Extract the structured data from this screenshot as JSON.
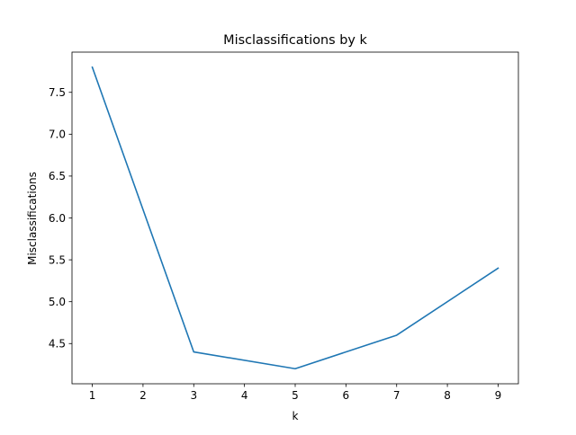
{
  "chart_data": {
    "type": "line",
    "title": "Misclassifications by k",
    "xlabel": "k",
    "ylabel": "Misclassifications",
    "x": [
      1,
      3,
      5,
      7,
      9
    ],
    "series": [
      {
        "values": [
          7.8,
          4.4,
          4.2,
          4.6,
          5.4
        ]
      }
    ],
    "xlim": [
      0.6,
      9.4
    ],
    "ylim": [
      4.02,
      7.98
    ],
    "xticks": [
      1,
      2,
      3,
      4,
      5,
      6,
      7,
      8,
      9
    ],
    "xtick_labels": [
      "1",
      "2",
      "3",
      "4",
      "5",
      "6",
      "7",
      "8",
      "9"
    ],
    "yticks": [
      4.5,
      5.0,
      5.5,
      6.0,
      6.5,
      7.0,
      7.5
    ],
    "ytick_labels": [
      "4.5",
      "5.0",
      "5.5",
      "6.0",
      "6.5",
      "7.0",
      "7.5"
    ],
    "grid": false,
    "legend": false,
    "line_color": "#1f77b4"
  }
}
